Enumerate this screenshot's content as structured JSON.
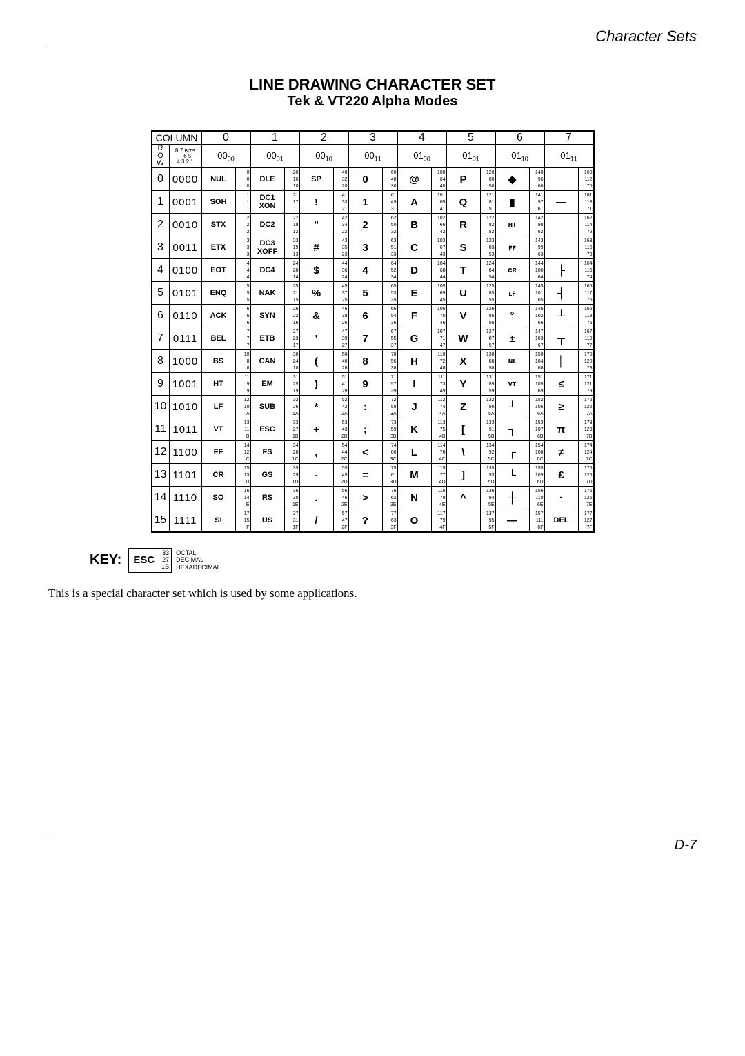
{
  "header": "Character Sets",
  "title1": "LINE DRAWING CHARACTER SET",
  "title2": "Tek & VT220 Alpha Modes",
  "columnLabel": "COLUMN",
  "rowLabel": "R\nO\nW",
  "bitsHeader": "8 7 BITS\n   6 5\n4 3 2 1",
  "colBits": [
    "⁰0₀₀",
    "⁰0₀₁",
    "⁰0₁₀",
    "⁰0₁₁",
    "⁰1₀₀",
    "⁰1₀₁",
    "⁰1₁₀",
    "⁰1₁₁"
  ],
  "rows": [
    {
      "n": "0",
      "b": "0000",
      "cells": [
        {
          "c": "NUL",
          "o": "0",
          "d": "0",
          "h": "0",
          "s": 1
        },
        {
          "c": "DLE",
          "o": "20",
          "d": "16",
          "h": "10",
          "s": 1
        },
        {
          "c": "SP",
          "o": "40",
          "d": "32",
          "h": "20",
          "s": 1
        },
        {
          "c": "0",
          "o": "60",
          "d": "48",
          "h": "30"
        },
        {
          "c": "@",
          "o": "100",
          "d": "64",
          "h": "40"
        },
        {
          "c": "P",
          "o": "120",
          "d": "80",
          "h": "50"
        },
        {
          "c": "◆",
          "o": "140",
          "d": "96",
          "h": "60"
        },
        {
          "c": "",
          "o": "160",
          "d": "112",
          "h": "70"
        }
      ]
    },
    {
      "n": "1",
      "b": "0001",
      "cells": [
        {
          "c": "SOH",
          "o": "1",
          "d": "1",
          "h": "1",
          "s": 1
        },
        {
          "c": "DC1\nXON",
          "o": "21",
          "d": "17",
          "h": "11",
          "s": 1
        },
        {
          "c": "!",
          "o": "41",
          "d": "33",
          "h": "21"
        },
        {
          "c": "1",
          "o": "61",
          "d": "49",
          "h": "31"
        },
        {
          "c": "A",
          "o": "101",
          "d": "65",
          "h": "41"
        },
        {
          "c": "Q",
          "o": "121",
          "d": "81",
          "h": "51"
        },
        {
          "c": "▮",
          "o": "141",
          "d": "97",
          "h": "61"
        },
        {
          "c": "—",
          "o": "161",
          "d": "113",
          "h": "71"
        }
      ]
    },
    {
      "n": "2",
      "b": "0010",
      "cells": [
        {
          "c": "STX",
          "o": "2",
          "d": "2",
          "h": "2",
          "s": 1
        },
        {
          "c": "DC2",
          "o": "22",
          "d": "18",
          "h": "12",
          "s": 1
        },
        {
          "c": "\"",
          "o": "42",
          "d": "34",
          "h": "22"
        },
        {
          "c": "2",
          "o": "62",
          "d": "50",
          "h": "32"
        },
        {
          "c": "B",
          "o": "102",
          "d": "66",
          "h": "42"
        },
        {
          "c": "R",
          "o": "122",
          "d": "82",
          "h": "52"
        },
        {
          "c": "ʜᴛ",
          "o": "142",
          "d": "98",
          "h": "62",
          "s": 1
        },
        {
          "c": "",
          "o": "162",
          "d": "114",
          "h": "72"
        }
      ]
    },
    {
      "n": "3",
      "b": "0011",
      "cells": [
        {
          "c": "ETX",
          "o": "3",
          "d": "3",
          "h": "3",
          "s": 1
        },
        {
          "c": "DC3\nXOFF",
          "o": "23",
          "d": "19",
          "h": "13",
          "s": 1
        },
        {
          "c": "#",
          "o": "43",
          "d": "35",
          "h": "23"
        },
        {
          "c": "3",
          "o": "63",
          "d": "51",
          "h": "33"
        },
        {
          "c": "C",
          "o": "103",
          "d": "67",
          "h": "43"
        },
        {
          "c": "S",
          "o": "123",
          "d": "83",
          "h": "53"
        },
        {
          "c": "ꜰꜰ",
          "o": "143",
          "d": "99",
          "h": "63",
          "s": 1
        },
        {
          "c": "",
          "o": "163",
          "d": "115",
          "h": "73"
        }
      ]
    },
    {
      "n": "4",
      "b": "0100",
      "cells": [
        {
          "c": "EOT",
          "o": "4",
          "d": "4",
          "h": "4",
          "s": 1
        },
        {
          "c": "DC4",
          "o": "24",
          "d": "20",
          "h": "14",
          "s": 1
        },
        {
          "c": "$",
          "o": "44",
          "d": "36",
          "h": "24"
        },
        {
          "c": "4",
          "o": "64",
          "d": "52",
          "h": "34"
        },
        {
          "c": "D",
          "o": "104",
          "d": "68",
          "h": "44"
        },
        {
          "c": "T",
          "o": "124",
          "d": "84",
          "h": "54"
        },
        {
          "c": "ᴄʀ",
          "o": "144",
          "d": "100",
          "h": "64",
          "s": 1
        },
        {
          "c": "├",
          "o": "164",
          "d": "116",
          "h": "74"
        }
      ]
    },
    {
      "n": "5",
      "b": "0101",
      "cells": [
        {
          "c": "ENQ",
          "o": "5",
          "d": "5",
          "h": "5",
          "s": 1
        },
        {
          "c": "NAK",
          "o": "25",
          "d": "21",
          "h": "15",
          "s": 1
        },
        {
          "c": "%",
          "o": "45",
          "d": "37",
          "h": "25"
        },
        {
          "c": "5",
          "o": "65",
          "d": "53",
          "h": "35"
        },
        {
          "c": "E",
          "o": "105",
          "d": "69",
          "h": "45"
        },
        {
          "c": "U",
          "o": "125",
          "d": "85",
          "h": "55"
        },
        {
          "c": "ʟꜰ",
          "o": "145",
          "d": "101",
          "h": "65",
          "s": 1
        },
        {
          "c": "┤",
          "o": "165",
          "d": "117",
          "h": "75"
        }
      ]
    },
    {
      "n": "6",
      "b": "0110",
      "cells": [
        {
          "c": "ACK",
          "o": "6",
          "d": "6",
          "h": "6",
          "s": 1
        },
        {
          "c": "SYN",
          "o": "26",
          "d": "22",
          "h": "16",
          "s": 1
        },
        {
          "c": "&",
          "o": "46",
          "d": "38",
          "h": "26"
        },
        {
          "c": "6",
          "o": "66",
          "d": "54",
          "h": "36"
        },
        {
          "c": "F",
          "o": "106",
          "d": "70",
          "h": "46"
        },
        {
          "c": "V",
          "o": "126",
          "d": "86",
          "h": "56"
        },
        {
          "c": "°",
          "o": "146",
          "d": "102",
          "h": "66"
        },
        {
          "c": "┴",
          "o": "166",
          "d": "118",
          "h": "76"
        }
      ]
    },
    {
      "n": "7",
      "b": "0111",
      "cells": [
        {
          "c": "BEL",
          "o": "7",
          "d": "7",
          "h": "7",
          "s": 1
        },
        {
          "c": "ETB",
          "o": "27",
          "d": "23",
          "h": "17",
          "s": 1
        },
        {
          "c": "'",
          "o": "47",
          "d": "39",
          "h": "27"
        },
        {
          "c": "7",
          "o": "67",
          "d": "55",
          "h": "37"
        },
        {
          "c": "G",
          "o": "107",
          "d": "71",
          "h": "47"
        },
        {
          "c": "W",
          "o": "127",
          "d": "87",
          "h": "57"
        },
        {
          "c": "±",
          "o": "147",
          "d": "103",
          "h": "67"
        },
        {
          "c": "┬",
          "o": "167",
          "d": "119",
          "h": "77"
        }
      ]
    },
    {
      "n": "8",
      "b": "1000",
      "cells": [
        {
          "c": "BS",
          "o": "10",
          "d": "8",
          "h": "8",
          "s": 1
        },
        {
          "c": "CAN",
          "o": "30",
          "d": "24",
          "h": "18",
          "s": 1
        },
        {
          "c": "(",
          "o": "50",
          "d": "40",
          "h": "28"
        },
        {
          "c": "8",
          "o": "70",
          "d": "56",
          "h": "38"
        },
        {
          "c": "H",
          "o": "110",
          "d": "72",
          "h": "48"
        },
        {
          "c": "X",
          "o": "130",
          "d": "88",
          "h": "58"
        },
        {
          "c": "ɴʟ",
          "o": "150",
          "d": "104",
          "h": "68",
          "s": 1
        },
        {
          "c": "│",
          "o": "170",
          "d": "120",
          "h": "78"
        }
      ]
    },
    {
      "n": "9",
      "b": "1001",
      "cells": [
        {
          "c": "HT",
          "o": "11",
          "d": "9",
          "h": "9",
          "s": 1
        },
        {
          "c": "EM",
          "o": "31",
          "d": "25",
          "h": "19",
          "s": 1
        },
        {
          "c": ")",
          "o": "51",
          "d": "41",
          "h": "29"
        },
        {
          "c": "9",
          "o": "71",
          "d": "57",
          "h": "39"
        },
        {
          "c": "I",
          "o": "111",
          "d": "73",
          "h": "49"
        },
        {
          "c": "Y",
          "o": "131",
          "d": "89",
          "h": "59"
        },
        {
          "c": "ᴠᴛ",
          "o": "151",
          "d": "105",
          "h": "69",
          "s": 1
        },
        {
          "c": "≤",
          "o": "171",
          "d": "121",
          "h": "79"
        }
      ]
    },
    {
      "n": "10",
      "b": "1010",
      "cells": [
        {
          "c": "LF",
          "o": "12",
          "d": "10",
          "h": "A",
          "s": 1
        },
        {
          "c": "SUB",
          "o": "32",
          "d": "26",
          "h": "1A",
          "s": 1
        },
        {
          "c": "*",
          "o": "52",
          "d": "42",
          "h": "2A"
        },
        {
          "c": ":",
          "o": "72",
          "d": "58",
          "h": "3A"
        },
        {
          "c": "J",
          "o": "112",
          "d": "74",
          "h": "4A"
        },
        {
          "c": "Z",
          "o": "132",
          "d": "90",
          "h": "5A"
        },
        {
          "c": "┘",
          "o": "152",
          "d": "106",
          "h": "6A"
        },
        {
          "c": "≥",
          "o": "172",
          "d": "122",
          "h": "7A"
        }
      ]
    },
    {
      "n": "11",
      "b": "1011",
      "cells": [
        {
          "c": "VT",
          "o": "13",
          "d": "11",
          "h": "B",
          "s": 1
        },
        {
          "c": "ESC",
          "o": "33",
          "d": "27",
          "h": "1B",
          "s": 1
        },
        {
          "c": "+",
          "o": "53",
          "d": "43",
          "h": "2B"
        },
        {
          "c": ";",
          "o": "73",
          "d": "59",
          "h": "3B"
        },
        {
          "c": "K",
          "o": "113",
          "d": "75",
          "h": "4B"
        },
        {
          "c": "[",
          "o": "133",
          "d": "91",
          "h": "5B"
        },
        {
          "c": "┐",
          "o": "153",
          "d": "107",
          "h": "6B"
        },
        {
          "c": "π",
          "o": "173",
          "d": "123",
          "h": "7B"
        }
      ]
    },
    {
      "n": "12",
      "b": "1100",
      "cells": [
        {
          "c": "FF",
          "o": "14",
          "d": "12",
          "h": "C",
          "s": 1
        },
        {
          "c": "FS",
          "o": "34",
          "d": "28",
          "h": "1C",
          "s": 1
        },
        {
          "c": ",",
          "o": "54",
          "d": "44",
          "h": "2C"
        },
        {
          "c": "<",
          "o": "74",
          "d": "60",
          "h": "3C"
        },
        {
          "c": "L",
          "o": "114",
          "d": "76",
          "h": "4C"
        },
        {
          "c": "\\",
          "o": "134",
          "d": "92",
          "h": "5C"
        },
        {
          "c": "┌",
          "o": "154",
          "d": "108",
          "h": "6C"
        },
        {
          "c": "≠",
          "o": "174",
          "d": "124",
          "h": "7C"
        }
      ]
    },
    {
      "n": "13",
      "b": "1101",
      "cells": [
        {
          "c": "CR",
          "o": "15",
          "d": "13",
          "h": "D",
          "s": 1
        },
        {
          "c": "GS",
          "o": "35",
          "d": "29",
          "h": "1D",
          "s": 1
        },
        {
          "c": "-",
          "o": "55",
          "d": "45",
          "h": "2D"
        },
        {
          "c": "=",
          "o": "75",
          "d": "61",
          "h": "3D"
        },
        {
          "c": "M",
          "o": "115",
          "d": "77",
          "h": "4D"
        },
        {
          "c": "]",
          "o": "135",
          "d": "93",
          "h": "5D"
        },
        {
          "c": "└",
          "o": "155",
          "d": "109",
          "h": "6D"
        },
        {
          "c": "£",
          "o": "175",
          "d": "125",
          "h": "7D"
        }
      ]
    },
    {
      "n": "14",
      "b": "1110",
      "cells": [
        {
          "c": "SO",
          "o": "16",
          "d": "14",
          "h": "E",
          "s": 1
        },
        {
          "c": "RS",
          "o": "36",
          "d": "30",
          "h": "1E",
          "s": 1
        },
        {
          "c": ".",
          "o": "56",
          "d": "46",
          "h": "2E"
        },
        {
          "c": ">",
          "o": "76",
          "d": "62",
          "h": "3E"
        },
        {
          "c": "N",
          "o": "116",
          "d": "78",
          "h": "4E"
        },
        {
          "c": "^",
          "o": "136",
          "d": "94",
          "h": "5E"
        },
        {
          "c": "┼",
          "o": "156",
          "d": "110",
          "h": "6E"
        },
        {
          "c": "·",
          "o": "176",
          "d": "126",
          "h": "7E"
        }
      ]
    },
    {
      "n": "15",
      "b": "1111",
      "cells": [
        {
          "c": "SI",
          "o": "17",
          "d": "15",
          "h": "F",
          "s": 1
        },
        {
          "c": "US",
          "o": "37",
          "d": "31",
          "h": "1F",
          "s": 1
        },
        {
          "c": "/",
          "o": "57",
          "d": "47",
          "h": "2F"
        },
        {
          "c": "?",
          "o": "77",
          "d": "63",
          "h": "3F"
        },
        {
          "c": "O",
          "o": "117",
          "d": "79",
          "h": "4F"
        },
        {
          "c": "",
          "o": "137",
          "d": "95",
          "h": "5F"
        },
        {
          "c": "—",
          "o": "157",
          "d": "111",
          "h": "6F"
        },
        {
          "c": "DEL",
          "o": "177",
          "d": "127",
          "h": "7F",
          "s": 1
        }
      ]
    }
  ],
  "key": {
    "label": "KEY:",
    "char": "ESC",
    "o": "33",
    "d": "27",
    "h": "1B",
    "leg": [
      "OCTAL",
      "DECIMAL",
      "HEXADECIMAL"
    ]
  },
  "note": "This is a special character set which is used by some applications.",
  "pageNum": "D-7"
}
